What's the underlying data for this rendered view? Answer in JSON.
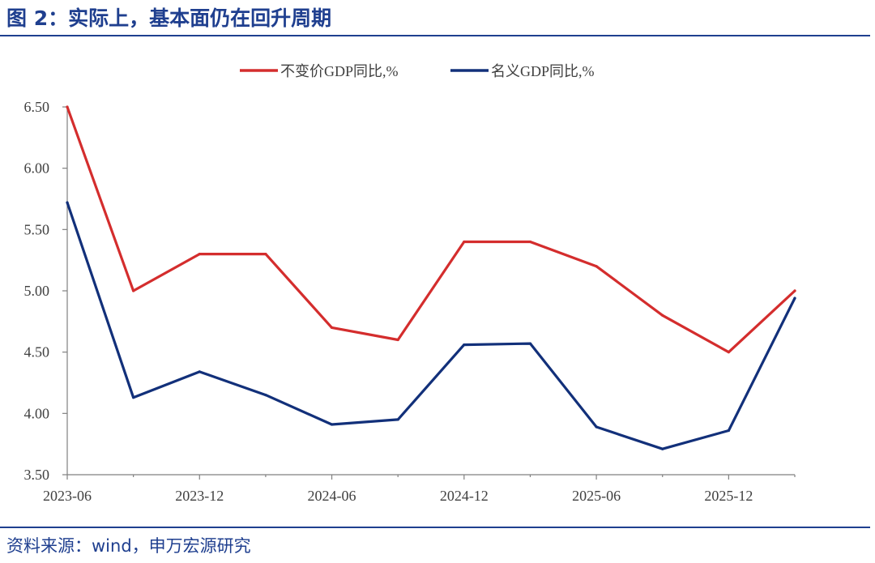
{
  "header": {
    "title": "图 2：实际上，基本面仍在回升周期"
  },
  "footer": {
    "source": "资料来源：wind，申万宏源研究"
  },
  "colors": {
    "accent": "#1f3f8f",
    "real_gdp": "#d42d2d",
    "nominal_gdp": "#12307a"
  },
  "chart_data": {
    "type": "line",
    "title": "",
    "xlabel": "",
    "ylabel": "",
    "ylim": [
      3.5,
      6.5
    ],
    "yticks": [
      "6.50",
      "6.00",
      "5.50",
      "5.00",
      "4.50",
      "4.00",
      "3.50"
    ],
    "xtick_labels": [
      "2023-06",
      "2023-12",
      "2024-06",
      "2024-12",
      "2025-06",
      "2025-12"
    ],
    "x": [
      "2023-06",
      "2023-09",
      "2023-12",
      "2024-03",
      "2024-06",
      "2024-09",
      "2024-12",
      "2025-03",
      "2025-06",
      "2025-09",
      "2025-12",
      "2026-03"
    ],
    "legend_position": "top",
    "series": [
      {
        "name": "不变价GDP同比,%",
        "color": "#d42d2d",
        "values": [
          6.5,
          5.0,
          5.3,
          5.3,
          4.7,
          4.6,
          5.4,
          5.4,
          5.2,
          4.8,
          4.5,
          5.0
        ]
      },
      {
        "name": "名义GDP同比,%",
        "color": "#12307a",
        "values": [
          5.72,
          4.13,
          4.34,
          4.15,
          3.91,
          3.95,
          4.56,
          4.57,
          3.89,
          3.71,
          3.86,
          4.94
        ]
      }
    ]
  }
}
